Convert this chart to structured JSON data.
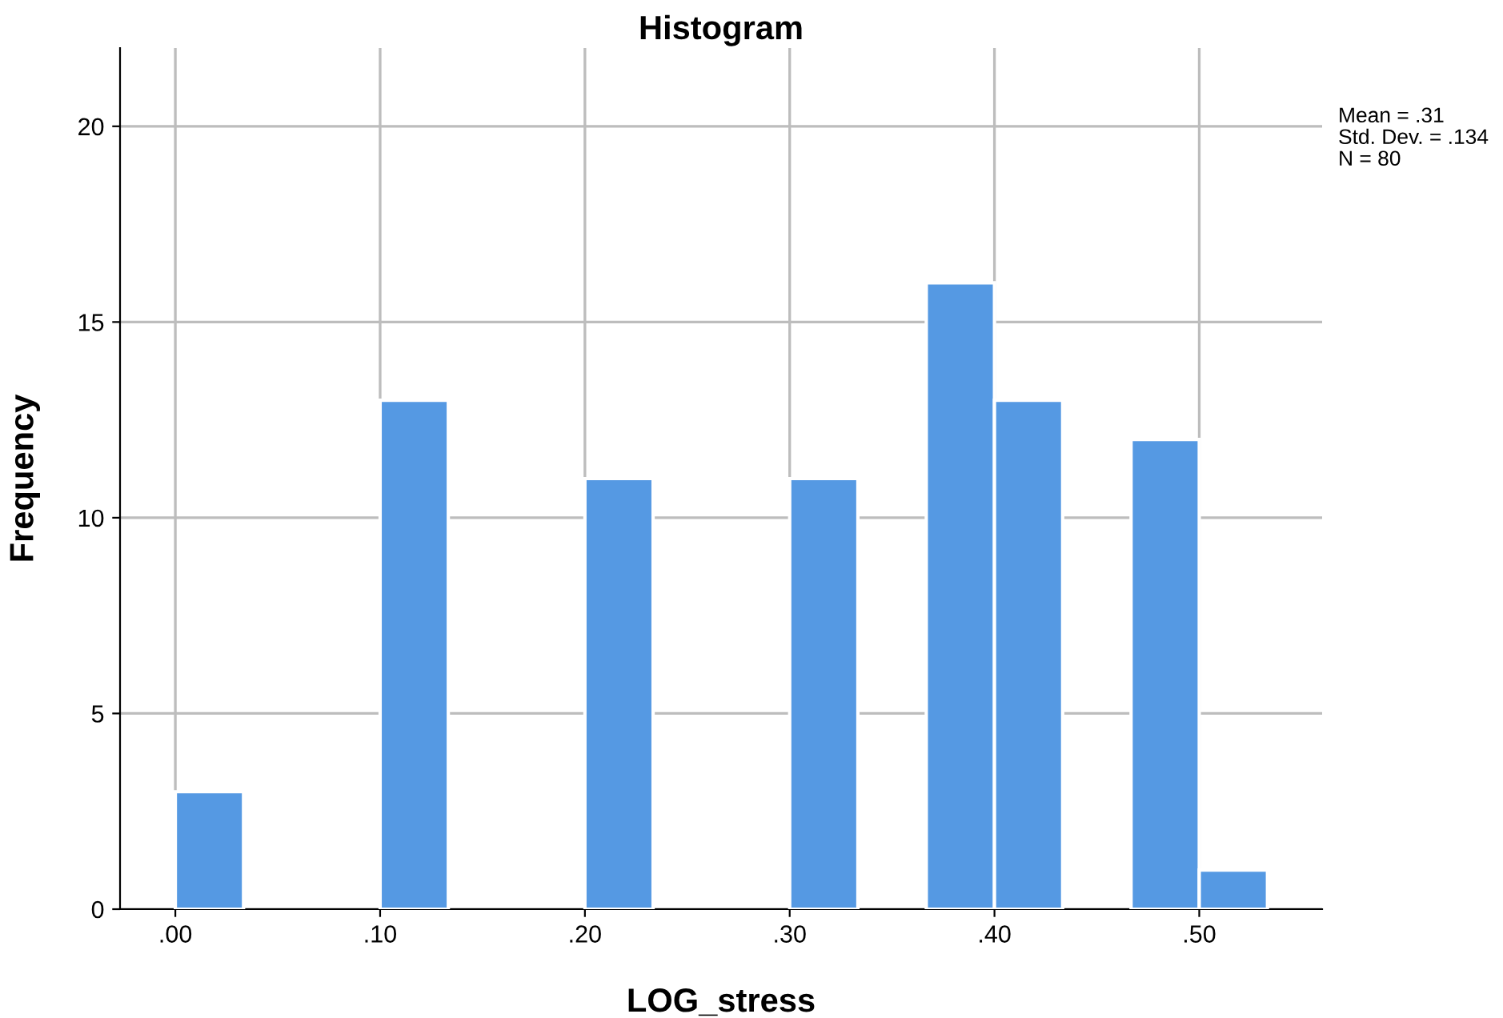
{
  "chart_data": {
    "type": "histogram",
    "title": "Histogram",
    "xlabel": "LOG_stress",
    "ylabel": "Frequency",
    "bins": [
      0,
      0.0333,
      0.0667,
      0.1,
      0.1333,
      0.1667,
      0.2,
      0.2333,
      0.2667,
      0.3,
      0.3333,
      0.3667,
      0.4,
      0.4333,
      0.4667,
      0.5,
      0.5333
    ],
    "values": [
      3,
      0,
      0,
      13,
      0,
      0,
      11,
      0,
      0,
      11,
      0,
      16,
      13,
      0,
      12,
      1
    ],
    "color": "#5599e3",
    "xlim": [
      -0.027,
      0.56
    ],
    "ylim": [
      0,
      22
    ],
    "xticks": [
      {
        "value": 0,
        "label": ".00"
      },
      {
        "value": 0.1,
        "label": ".10"
      },
      {
        "value": 0.2,
        "label": ".20"
      },
      {
        "value": 0.3,
        "label": ".30"
      },
      {
        "value": 0.4,
        "label": ".40"
      },
      {
        "value": 0.5,
        "label": ".50"
      }
    ],
    "yticks": [
      0,
      5,
      10,
      15,
      20
    ],
    "grid": true,
    "annotations": [
      "Mean = .31",
      "Std. Dev. = .134",
      "N = 80"
    ]
  }
}
